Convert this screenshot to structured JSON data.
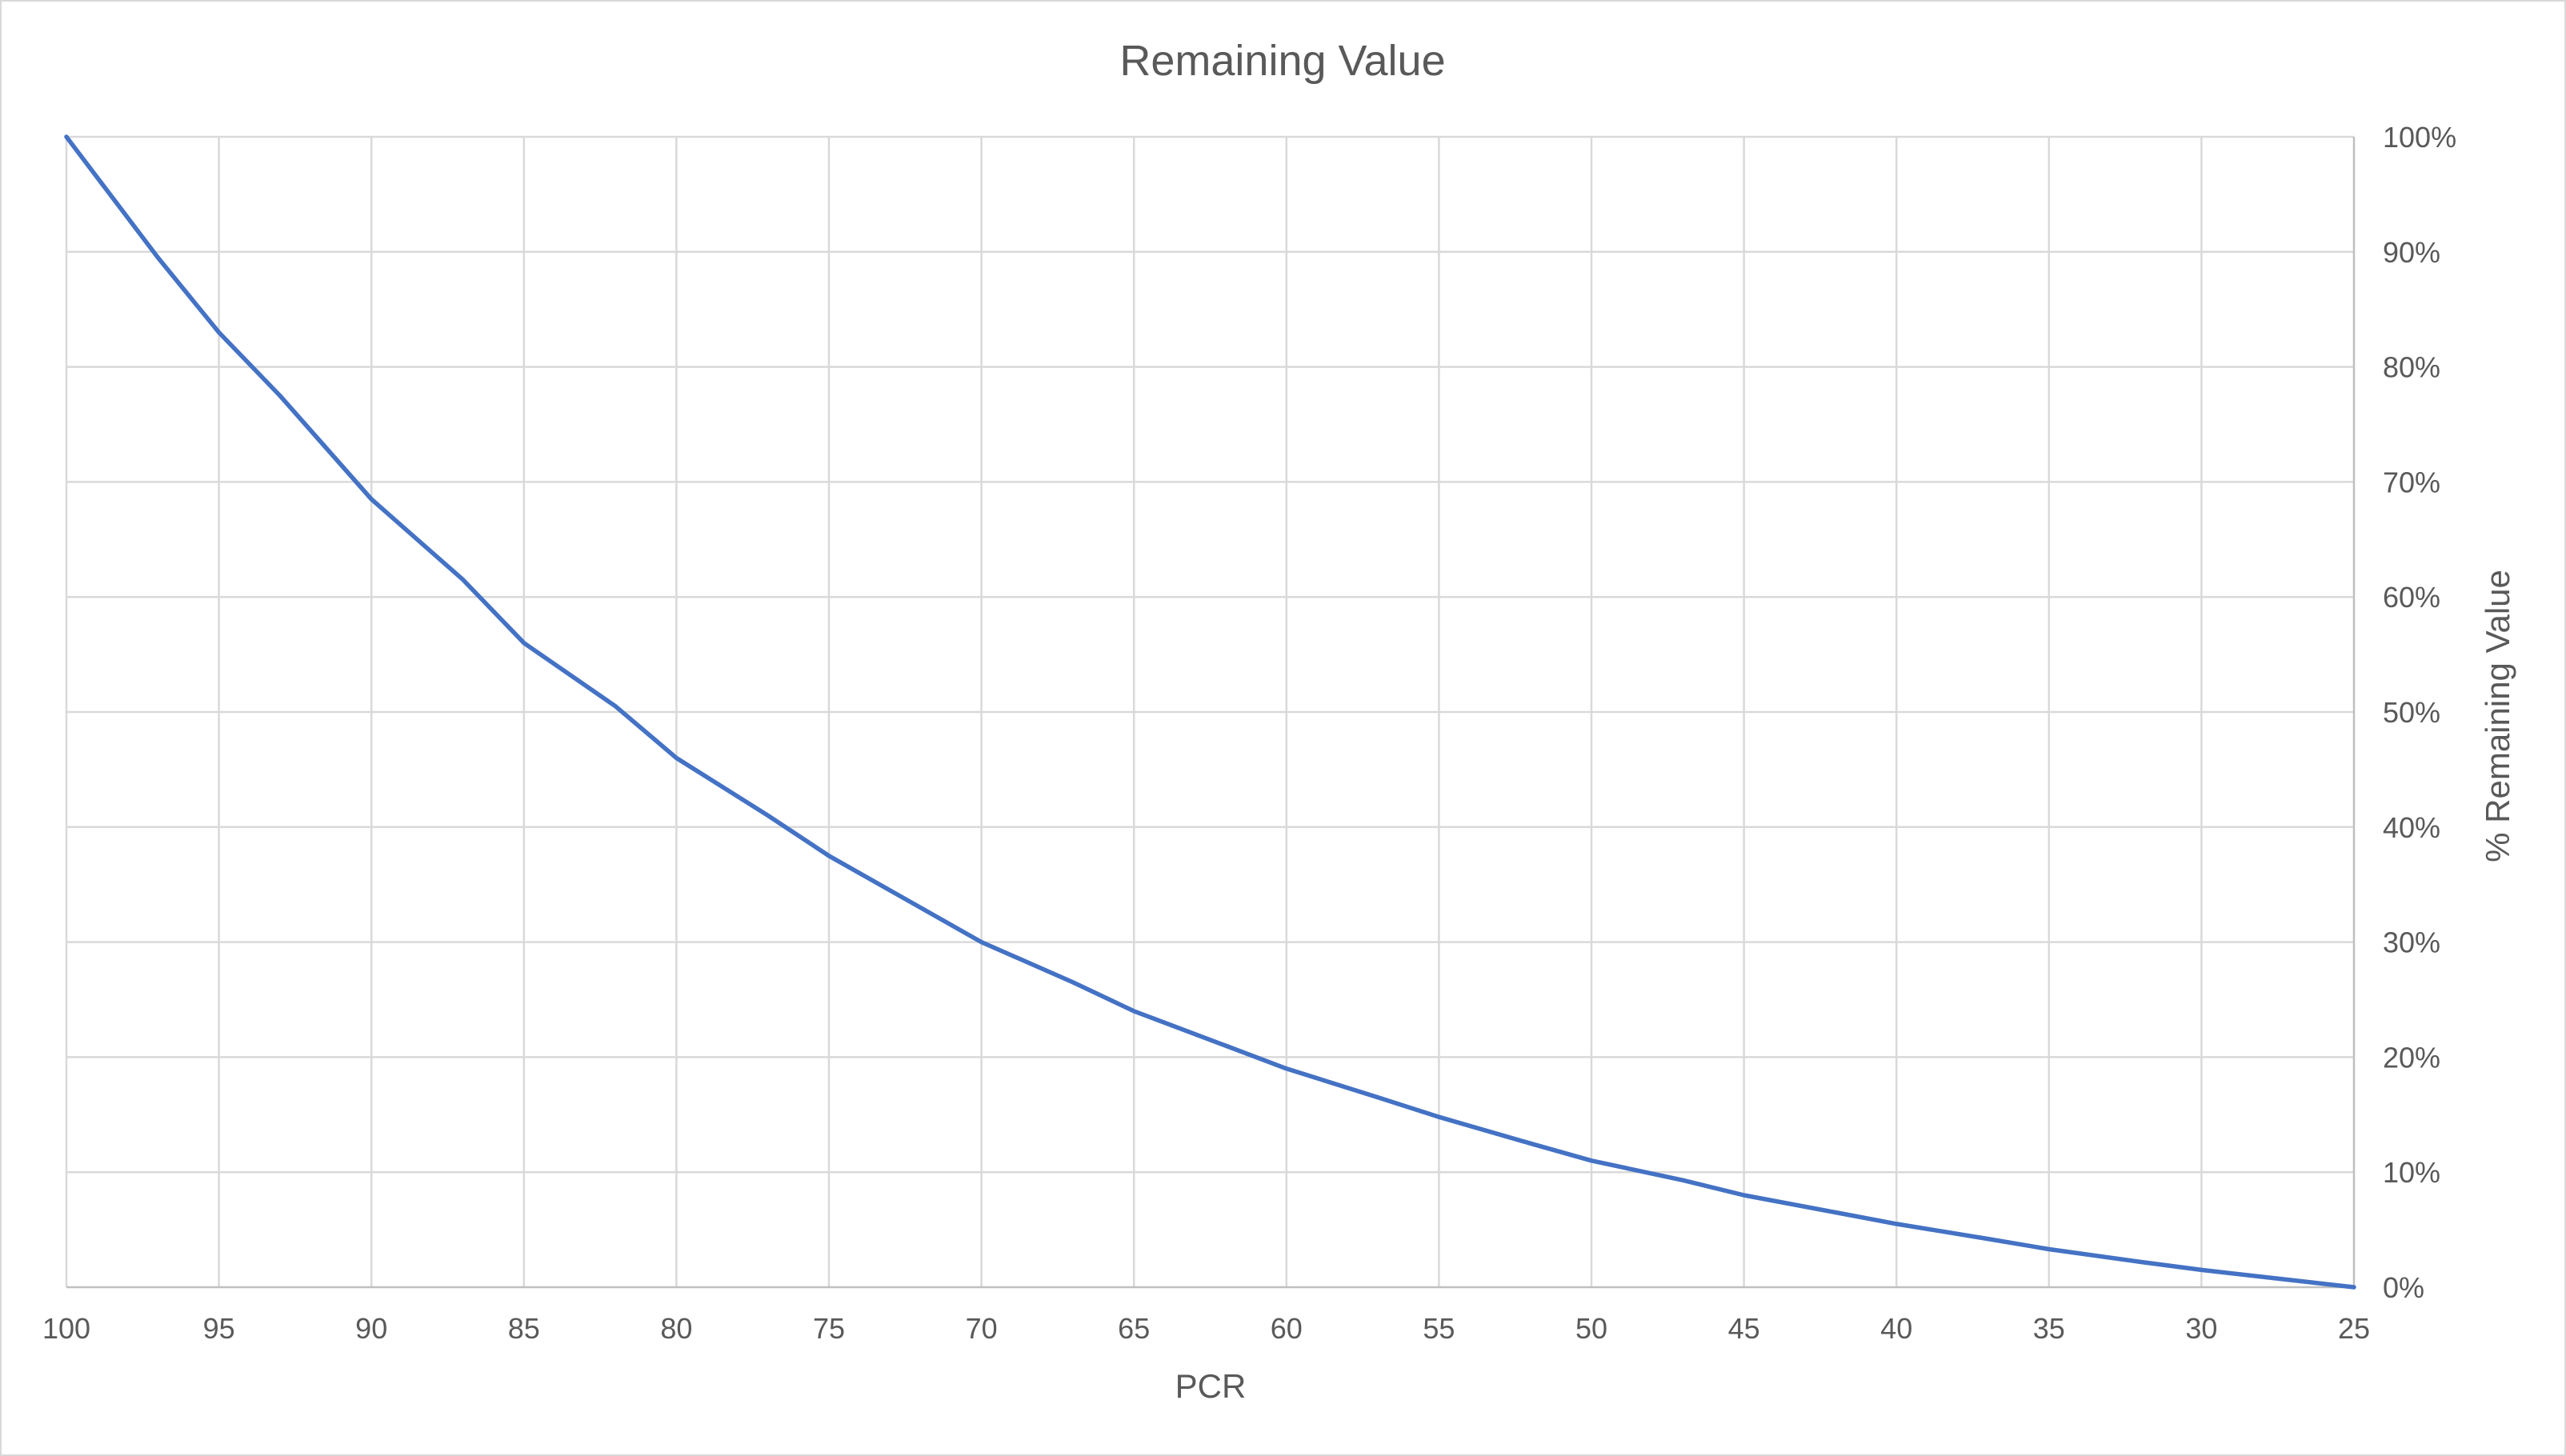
{
  "chart_data": {
    "type": "line",
    "title": "Remaining Value",
    "xlabel": "PCR",
    "ylabel": "% Remaining Value",
    "x_reversed": true,
    "y_axis_position": "right",
    "grid": true,
    "legend": "none",
    "xlim": [
      100,
      25
    ],
    "ylim": [
      0,
      100
    ],
    "x_ticks": [
      100,
      95,
      90,
      85,
      80,
      75,
      70,
      65,
      60,
      55,
      50,
      45,
      40,
      35,
      30,
      25
    ],
    "y_ticks": [
      "0%",
      "10%",
      "20%",
      "30%",
      "40%",
      "50%",
      "60%",
      "70%",
      "80%",
      "90%",
      "100%"
    ],
    "series_color": "#4472c4",
    "series": [
      {
        "x": [
          100,
          97,
          95,
          93,
          90,
          87,
          85,
          82,
          80,
          77,
          75,
          72,
          70,
          67,
          65,
          62,
          60,
          57,
          55,
          52,
          50,
          47,
          45,
          42,
          40,
          37,
          35,
          32,
          30,
          27,
          25
        ],
        "values": [
          100,
          89.5,
          83.0,
          77.5,
          68.5,
          61.5,
          56.0,
          50.5,
          46.0,
          41.0,
          37.5,
          33.0,
          30.0,
          26.5,
          24.0,
          21.0,
          19.0,
          16.5,
          14.8,
          12.5,
          11.0,
          9.3,
          8.0,
          6.5,
          5.5,
          4.2,
          3.3,
          2.2,
          1.5,
          0.6,
          0
        ]
      }
    ]
  }
}
